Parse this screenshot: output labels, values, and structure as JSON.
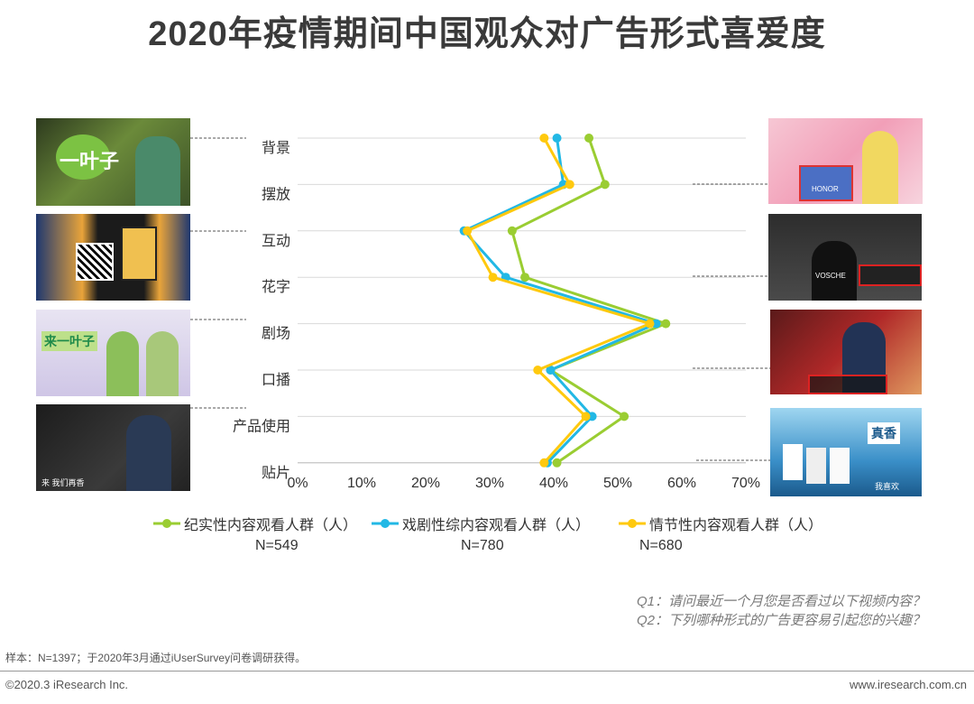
{
  "title": "2020年疫情期间中国观众对广告形式喜爱度",
  "chart_data": {
    "type": "line",
    "orientation": "horizontal",
    "categories": [
      "背景",
      "摆放",
      "互动",
      "花字",
      "剧场",
      "口播",
      "产品使用",
      "贴片"
    ],
    "x_ticks": [
      "0%",
      "10%",
      "20%",
      "30%",
      "40%",
      "50%",
      "60%",
      "70%"
    ],
    "xlim": [
      0,
      70
    ],
    "series": [
      {
        "name": "纪实性内容观看人群（人）",
        "n_label": "N=549",
        "color": "#9ACD32",
        "values": [
          45.5,
          48,
          33.5,
          35.5,
          57.5,
          39.5,
          51,
          40.5
        ]
      },
      {
        "name": "戏剧性综内容观看人群（人）",
        "n_label": "N=780",
        "color": "#22B8E5",
        "values": [
          40.5,
          41.5,
          26,
          32.5,
          56,
          39.5,
          46,
          39
        ]
      },
      {
        "name": "情节性内容观看人群（人）",
        "n_label": "N=680",
        "color": "#FFC90E",
        "values": [
          38.5,
          42.5,
          26.5,
          30.5,
          55,
          37.5,
          45,
          38.5
        ]
      }
    ],
    "grid": true,
    "legend": "bottom"
  },
  "questions": {
    "q1": "Q1：请问最近一个月您是否看过以下视频内容？",
    "q2": "Q2：下列哪种形式的广告更容易引起您的兴趣？"
  },
  "note": "样本：N=1397；于2020年3月通过iUserSurvey问卷调研获得。",
  "copyright": "©2020.3 iResearch Inc.",
  "website": "www.iresearch.com.cn",
  "thumb_texts": {
    "t1": "一叶子",
    "t3": "来一叶子",
    "t4": "来 我们再香",
    "t5_logo": "HONOR",
    "t6": "VOSCHE",
    "t8": "真香",
    "t8_sub": "我喜欢"
  }
}
